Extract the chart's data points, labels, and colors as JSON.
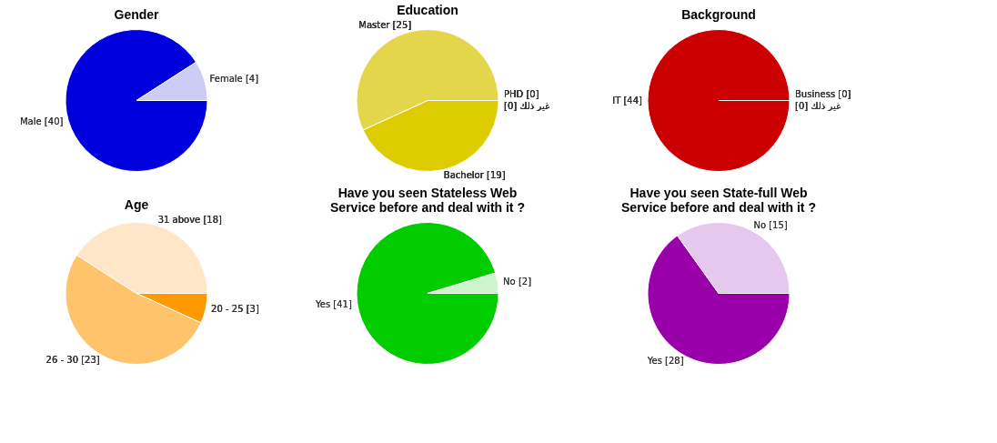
{
  "chart_data": [
    {
      "type": "pie",
      "title": "Gender",
      "categories": [
        "Male [40]",
        "Female [4]"
      ],
      "values": [
        40,
        4
      ],
      "colors": [
        "#0000dd",
        "#ccccf5"
      ]
    },
    {
      "type": "pie",
      "title": "Education",
      "categories": [
        "Bachelor [19]",
        "Master [25]",
        "PHD [0]",
        "غير ذلك [0]"
      ],
      "values": [
        19,
        25,
        0,
        0
      ],
      "colors": [
        "#dccc00",
        "#e3d64a",
        "#c8b400",
        "#f0e68c"
      ]
    },
    {
      "type": "pie",
      "title": "Background",
      "categories": [
        "IT [44]",
        "Business [0]",
        "غير ذلك [0]"
      ],
      "values": [
        44,
        0,
        0
      ],
      "colors": [
        "#cc0000",
        "#e06666",
        "#f4cccc"
      ]
    },
    {
      "type": "pie",
      "title": "Age",
      "categories": [
        "20 - 25 [3]",
        "26 - 30 [23]",
        "31 above [18]"
      ],
      "values": [
        3,
        23,
        18
      ],
      "colors": [
        "#ff9900",
        "#ffc36b",
        "#ffe6c8"
      ]
    },
    {
      "type": "pie",
      "title": "Have you seen Stateless Web Service before and deal with it ?",
      "categories": [
        "Yes [41]",
        "No [2]"
      ],
      "values": [
        41,
        2
      ],
      "colors": [
        "#00cc00",
        "#ccf5cc"
      ]
    },
    {
      "type": "pie",
      "title": "Have you seen State-full Web Service before and deal with it ?",
      "categories": [
        "Yes [28]",
        "No [15]"
      ],
      "values": [
        28,
        15
      ],
      "colors": [
        "#9900aa",
        "#e6c8ee"
      ]
    }
  ]
}
